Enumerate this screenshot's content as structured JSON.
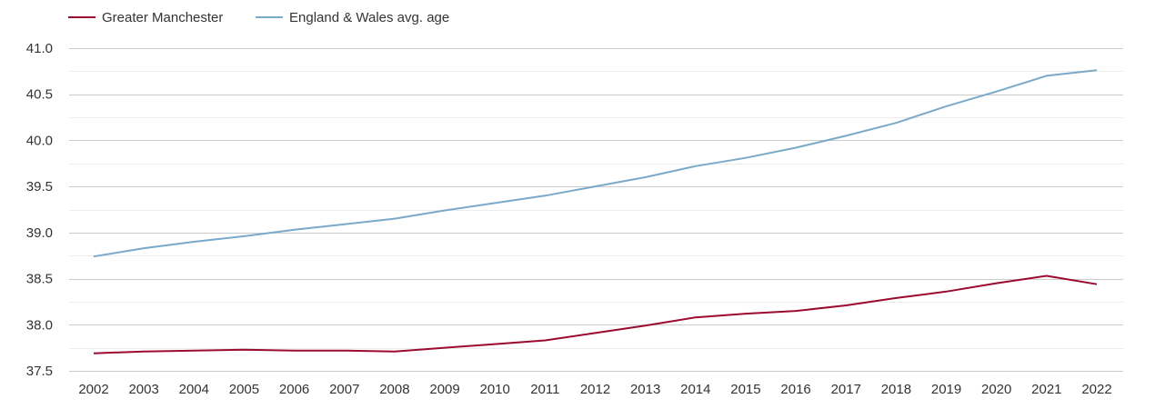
{
  "chart_data": {
    "type": "line",
    "title": "",
    "xlabel": "",
    "ylabel": "",
    "categories": [
      "2002",
      "2003",
      "2004",
      "2005",
      "2006",
      "2007",
      "2008",
      "2009",
      "2010",
      "2011",
      "2012",
      "2013",
      "2014",
      "2015",
      "2016",
      "2017",
      "2018",
      "2019",
      "2020",
      "2021",
      "2022"
    ],
    "ylim": [
      37.5,
      41.0
    ],
    "yticks": [
      "37.5",
      "38.0",
      "38.5",
      "39.0",
      "39.5",
      "40.0",
      "40.5",
      "41.0"
    ],
    "grid": true,
    "legend_position": "top-left",
    "series": [
      {
        "name": "Greater Manchester",
        "color": "#9b0a2f",
        "values": [
          37.69,
          37.71,
          37.72,
          37.73,
          37.72,
          37.72,
          37.71,
          37.75,
          37.79,
          37.83,
          37.91,
          37.99,
          38.08,
          38.12,
          38.15,
          38.21,
          38.29,
          38.36,
          38.45,
          38.53,
          38.44
        ]
      },
      {
        "name": "England & Wales avg. age",
        "color": "#7aa9c9",
        "values": [
          38.74,
          38.83,
          38.9,
          38.96,
          39.03,
          39.09,
          39.15,
          39.24,
          39.32,
          39.4,
          39.5,
          39.6,
          39.72,
          39.81,
          39.92,
          40.05,
          40.19,
          40.37,
          40.53,
          40.7,
          40.76
        ]
      }
    ]
  }
}
